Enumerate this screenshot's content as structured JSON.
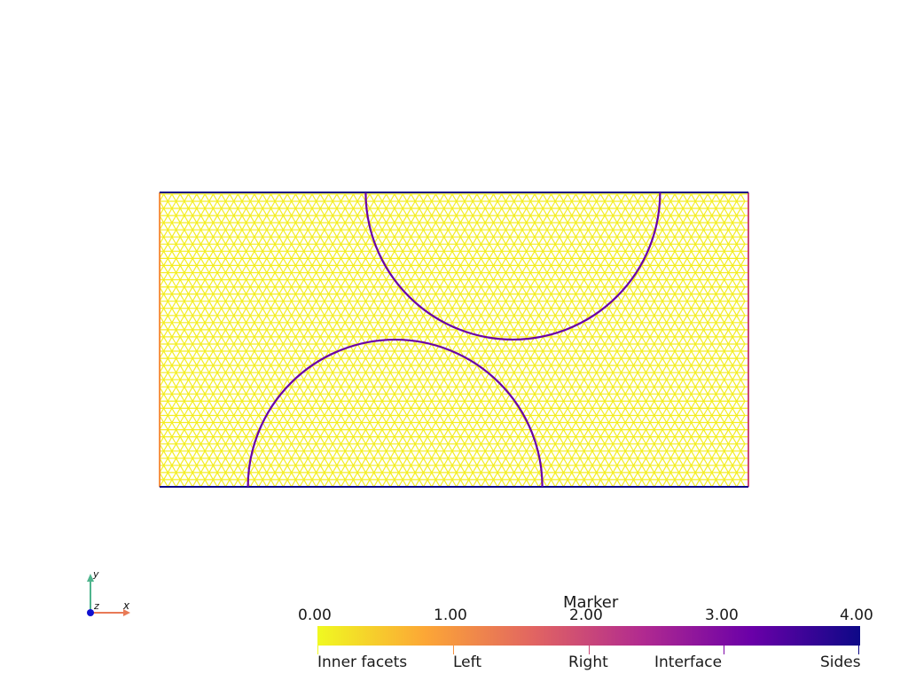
{
  "chart_data": {
    "type": "mesh",
    "title": "Marker",
    "domain": {
      "x": [
        0,
        2
      ],
      "y": [
        0,
        1
      ]
    },
    "circles": [
      {
        "cx": 0.8,
        "cy": 0.0,
        "r": 0.5
      },
      {
        "cx": 1.2,
        "cy": 1.0,
        "r": 0.5
      }
    ],
    "colorbar": {
      "range": [
        0,
        4
      ],
      "ticks": [
        "0.00",
        "1.00",
        "2.00",
        "3.00",
        "4.00"
      ],
      "stops": [
        "#f0f921",
        "#fca636",
        "#e16462",
        "#b12a90",
        "#6a00a8",
        "#0d0887"
      ]
    },
    "annotations": [
      {
        "label": "Inner facets",
        "value": 0.0,
        "color": "#f0f921"
      },
      {
        "label": "Left",
        "value": 1.0,
        "color": "#f79342"
      },
      {
        "label": "Right",
        "value": 2.0,
        "color": "#cc4778"
      },
      {
        "label": "Interface",
        "value": 3.0,
        "color": "#7e03a8"
      },
      {
        "label": "Sides",
        "value": 4.0,
        "color": "#0d0887"
      }
    ],
    "edge_colors": {
      "inner": "#f4ee21",
      "left": "#f79342",
      "right": "#cc4778",
      "interface": "#6a00a8",
      "sides": "#0d0887"
    }
  },
  "axes_widget": {
    "x": "x",
    "y": "y",
    "z": "z",
    "colors": {
      "x": "#e87a56",
      "y": "#4fb48d",
      "z": "#1010d0"
    }
  }
}
